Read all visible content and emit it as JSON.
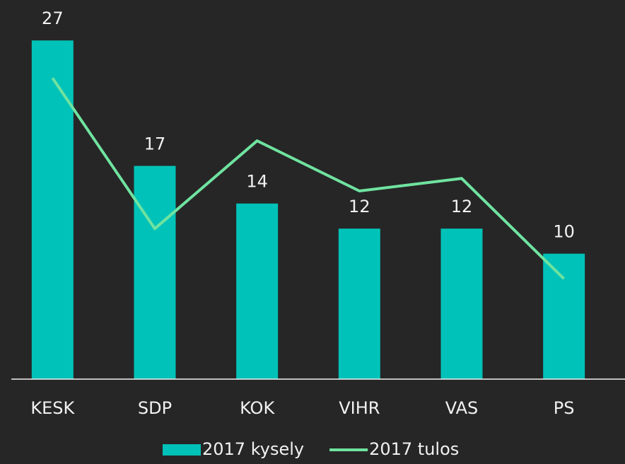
{
  "chart_data": {
    "type": "bar_line",
    "categories": [
      "KESK",
      "SDP",
      "KOK",
      "VIHR",
      "VAS",
      "PS"
    ],
    "series": [
      {
        "name": "2017 kysely",
        "type": "bar",
        "color": "#00c2b8",
        "values": [
          27,
          17,
          14,
          12,
          12,
          10
        ]
      },
      {
        "name": "2017 tulos",
        "type": "line",
        "color": "#6fe3a0",
        "values": [
          24,
          12,
          19,
          15,
          16,
          8
        ]
      }
    ],
    "ylim": [
      0,
      30
    ],
    "legend": "bottom"
  }
}
